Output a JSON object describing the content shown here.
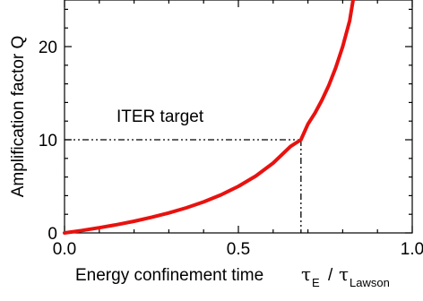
{
  "chart_data": {
    "type": "line",
    "xlabel": "Energy confinement time",
    "xlabel_symbol": {
      "numerator": "τ",
      "numerator_sub": "E",
      "separator": "/",
      "denominator": "τ",
      "denominator_sub": "Lawson"
    },
    "ylabel": "Amplification factor Q",
    "xlim": [
      0,
      1.0
    ],
    "ylim": [
      0,
      25
    ],
    "x_ticks": [
      0.0,
      0.5,
      1.0
    ],
    "x_tick_labels": [
      "0.0",
      "0.5",
      "1.0"
    ],
    "y_ticks": [
      0,
      10,
      20
    ],
    "y_tick_labels": [
      "0",
      "10",
      "20"
    ],
    "grid": false,
    "series": [
      {
        "color": "#e8120f",
        "x": [
          0,
          0.05,
          0.1,
          0.15,
          0.2,
          0.25,
          0.3,
          0.35,
          0.4,
          0.45,
          0.5,
          0.55,
          0.6,
          0.65,
          0.68,
          0.7,
          0.72,
          0.74,
          0.76,
          0.78,
          0.8,
          0.82,
          0.83
        ],
        "y": [
          0,
          0.26,
          0.56,
          0.88,
          1.25,
          1.67,
          2.14,
          2.69,
          3.33,
          4.09,
          5.0,
          6.11,
          7.5,
          9.29,
          10.0,
          11.67,
          12.86,
          14.23,
          15.83,
          17.73,
          20.0,
          22.78,
          25.0
        ]
      }
    ],
    "annotations": [
      {
        "text": "ITER target",
        "x": 0.68,
        "y": 10
      }
    ],
    "target_point": {
      "x": 0.68,
      "y": 10
    }
  }
}
